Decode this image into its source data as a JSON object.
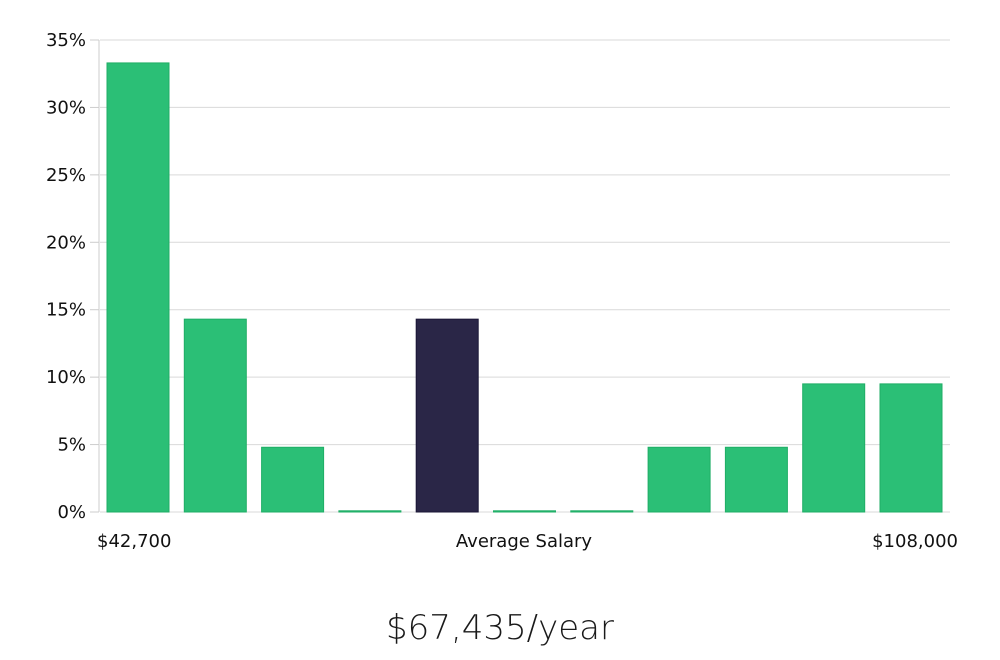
{
  "chart_data": {
    "type": "bar",
    "y_ticks": [
      "0%",
      "5%",
      "10%",
      "15%",
      "20%",
      "25%",
      "30%",
      "35%"
    ],
    "ylim": [
      0,
      35
    ],
    "grid": true,
    "x_labels": {
      "left": "$42,700",
      "center": "Average Salary",
      "right": "$108,000"
    },
    "values": [
      33.3,
      14.3,
      4.8,
      0,
      14.3,
      0,
      0,
      4.8,
      4.8,
      9.5,
      9.5
    ],
    "highlight_index": 4,
    "colors": {
      "bar": "#2bbf76",
      "bar_stroke": "#1fae66",
      "highlight": "#2a2647",
      "highlight_stroke": "#1a1636"
    }
  },
  "summary": {
    "average_salary": "$67,435/year"
  }
}
